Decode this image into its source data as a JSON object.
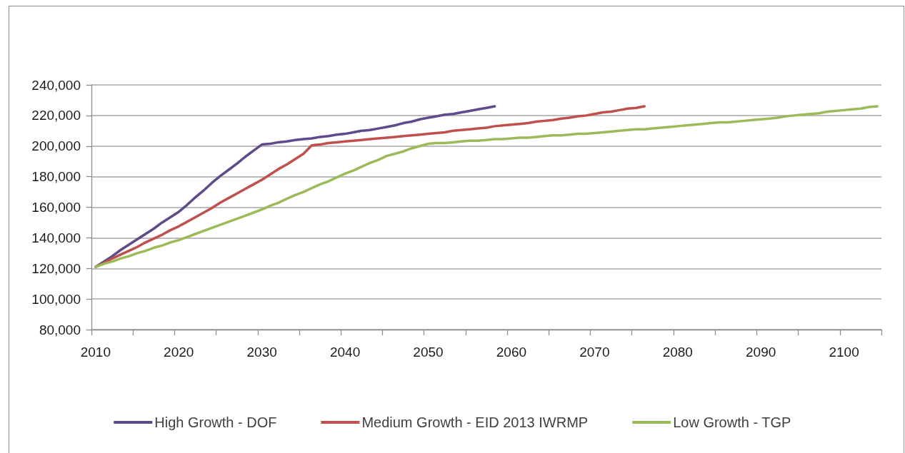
{
  "chart_data": {
    "type": "line",
    "categories": [
      "2010",
      null,
      null,
      null,
      null,
      null,
      null,
      null,
      null,
      null,
      "2020",
      null,
      null,
      null,
      null,
      null,
      null,
      null,
      null,
      null,
      "2030",
      null,
      null,
      null,
      null,
      null,
      null,
      null,
      null,
      null,
      "2040",
      null,
      null,
      null,
      null,
      null,
      null,
      null,
      null,
      null,
      "2050",
      null,
      null,
      null,
      null,
      null,
      null,
      null,
      null,
      null,
      "2060",
      null,
      null,
      null,
      null,
      null,
      null,
      null,
      null,
      null,
      "2070",
      null,
      null,
      null,
      null,
      null,
      null,
      null,
      null,
      null,
      "2080",
      null,
      null,
      null,
      null,
      null,
      null,
      null,
      null,
      null,
      "2090",
      null,
      null,
      null,
      null,
      null,
      null,
      null,
      null,
      null,
      "2100",
      null,
      null,
      null,
      null
    ],
    "ylim": [
      80000,
      240000
    ],
    "yticks": [
      {
        "value": 80000,
        "label": "80,000"
      },
      {
        "value": 100000,
        "label": "100,000"
      },
      {
        "value": 120000,
        "label": "120,000"
      },
      {
        "value": 140000,
        "label": "140,000"
      },
      {
        "value": 160000,
        "label": "160,000"
      },
      {
        "value": 180000,
        "label": "180,000"
      },
      {
        "value": 200000,
        "label": "200,000"
      },
      {
        "value": 220000,
        "label": "220,000"
      },
      {
        "value": 240000,
        "label": "240,000"
      }
    ],
    "grid": "y",
    "legend": "bottom",
    "marker": "none",
    "line_style": "solid",
    "series": [
      {
        "name": "High Growth - DOF",
        "color": "#5f4a8b",
        "values": [
          121000,
          124500,
          128000,
          132000,
          135500,
          139000,
          142500,
          146000,
          150000,
          153500,
          157000,
          161500,
          166500,
          171000,
          176000,
          180500,
          184500,
          188500,
          193000,
          197000,
          201000,
          201500,
          202500,
          203000,
          204000,
          204500,
          205000,
          206000,
          206500,
          207500,
          208000,
          209000,
          210000,
          210500,
          211500,
          212500,
          213500,
          215000,
          216000,
          217500,
          218500,
          219500,
          220500,
          221000,
          222000,
          223000,
          224000,
          225000,
          226000,
          null,
          null,
          null,
          null,
          null,
          null,
          null,
          null,
          null,
          null,
          null,
          null,
          null,
          null,
          null,
          null,
          null,
          null,
          null,
          null,
          null,
          null,
          null,
          null,
          null,
          null,
          null,
          null,
          null,
          null,
          null,
          null,
          null,
          null,
          null,
          null,
          null,
          null,
          null,
          null,
          null,
          null,
          null,
          null,
          null,
          null
        ]
      },
      {
        "name": "Medium Growth - EID 2013 IWRMP",
        "color": "#c0504d",
        "values": [
          121000,
          123500,
          126500,
          129000,
          131500,
          134000,
          137000,
          139500,
          142000,
          145000,
          147500,
          150500,
          153500,
          156500,
          159500,
          163000,
          166000,
          169000,
          172000,
          175000,
          178000,
          181500,
          185000,
          188000,
          191500,
          195000,
          200500,
          201000,
          202000,
          202500,
          203000,
          203500,
          204000,
          204500,
          205000,
          205500,
          206000,
          206500,
          207000,
          207500,
          208000,
          208500,
          209000,
          210000,
          210500,
          211000,
          211500,
          212000,
          213000,
          213500,
          214000,
          214500,
          215000,
          216000,
          216500,
          217000,
          218000,
          218500,
          219500,
          220000,
          221000,
          222000,
          222500,
          223500,
          224500,
          225000,
          226000,
          null,
          null,
          null,
          null,
          null,
          null,
          null,
          null,
          null,
          null,
          null,
          null,
          null,
          null,
          null,
          null,
          null,
          null,
          null,
          null,
          null,
          null,
          null,
          null,
          null,
          null,
          null,
          null
        ]
      },
      {
        "name": "Low Growth - TGP",
        "color": "#9bbb59",
        "values": [
          121000,
          123000,
          124500,
          126500,
          128000,
          130000,
          131500,
          133500,
          135000,
          137000,
          138500,
          140500,
          142500,
          144500,
          146500,
          148500,
          150500,
          152500,
          154500,
          156500,
          158500,
          161000,
          163000,
          165500,
          168000,
          170000,
          172500,
          175000,
          177000,
          179500,
          182000,
          184000,
          186500,
          189000,
          191000,
          193500,
          195000,
          196500,
          198500,
          200000,
          201500,
          202000,
          202000,
          202500,
          203000,
          203500,
          203500,
          204000,
          204500,
          204500,
          205000,
          205500,
          205500,
          206000,
          206500,
          207000,
          207000,
          207500,
          208000,
          208000,
          208500,
          209000,
          209500,
          210000,
          210500,
          211000,
          211000,
          211500,
          212000,
          212500,
          213000,
          213500,
          214000,
          214500,
          215000,
          215500,
          215500,
          216000,
          216500,
          217000,
          217500,
          218000,
          218500,
          219500,
          220000,
          220500,
          221000,
          221500,
          222500,
          223000,
          223500,
          224000,
          224500,
          225500,
          226000
        ]
      }
    ]
  }
}
